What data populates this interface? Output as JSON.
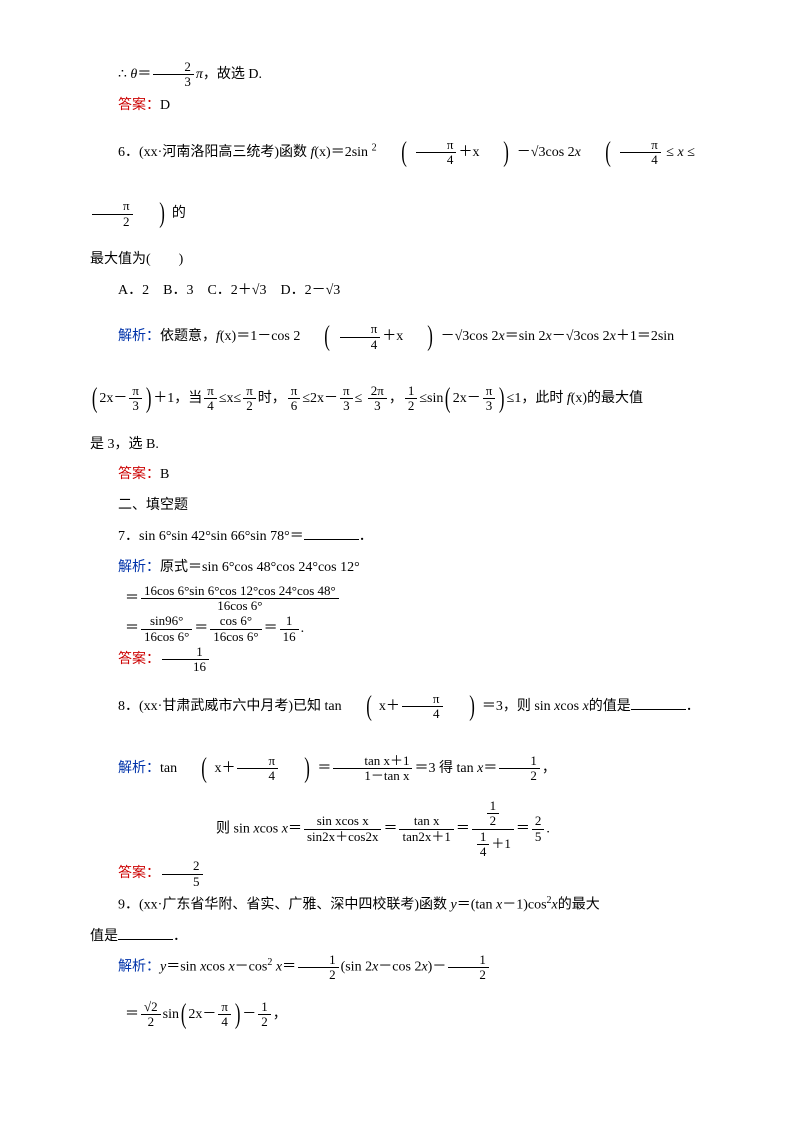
{
  "colors": {
    "red": "#cc0000",
    "blue": "#0033aa",
    "text": "#000000",
    "bg": "#ffffff"
  },
  "fontsize_body": 14,
  "line1_a": "∴ ",
  "line1_theta": "θ",
  "line1_b": "＝",
  "line1_frac_num": "2",
  "line1_frac_den": "3",
  "line1_c": "π",
  "line1_d": "，故选 D.",
  "ans5_label": "答案：",
  "ans5_val": "D",
  "q6_a": "6．(xx·河南洛阳高三统考)函数 ",
  "q6_fx": "f",
  "q6_paren_x": "(x)",
  "q6_b": "＝2sin ",
  "q6_sup2": "2",
  "q6_frac1_num": "π",
  "q6_frac1_den": "4",
  "q6_plus_x": "＋x",
  "q6_c": "－√3cos 2",
  "q6_x2": "x",
  "q6_frac2_num": "π",
  "q6_frac2_den": "4",
  "q6_le1": " ≤ ",
  "q6_xvar": "x",
  "q6_le2": " ≤ ",
  "q6_frac3_num": "π",
  "q6_frac3_den": "2",
  "q6_d": "的",
  "q6_line2": "最大值为(　　)",
  "q6_opts": "A．2　B．3　C．2＋√3　D．2－√3",
  "sol6_label": "解析：",
  "sol6_a": "依题意，",
  "sol6_b": "f",
  "sol6_c": "(x)",
  "sol6_d": "＝1－cos 2",
  "sol6_fr1_num": "π",
  "sol6_fr1_den": "4",
  "sol6_e": "＋x",
  "sol6_f": "－√3cos 2",
  "sol6_x": "x",
  "sol6_g": "＝sin 2",
  "sol6_h": "－√3cos 2",
  "sol6_i": "＋1＝2sin",
  "sol6_l2a": "2x－",
  "sol6_l2_fr_num": "π",
  "sol6_l2_fr_den": "3",
  "sol6_l2b": "＋1，当",
  "sol6_l2_fr2n": "π",
  "sol6_l2_fr2d": "4",
  "sol6_l2c": "≤x≤",
  "sol6_l2_fr3n": "π",
  "sol6_l2_fr3d": "2",
  "sol6_l2d": "时，",
  "sol6_l2_fr4n": "π",
  "sol6_l2_fr4d": "6",
  "sol6_l2e": "≤2x－",
  "sol6_l2_fr5n": "π",
  "sol6_l2_fr5d": "3",
  "sol6_l2f": "≤ ",
  "sol6_l2_fr6n": "2π",
  "sol6_l2_fr6d": "3",
  "sol6_l2g": "，",
  "sol6_l2_fr7n": "1",
  "sol6_l2_fr7d": "2",
  "sol6_l2h": "≤sin",
  "sol6_l2i": "2x－",
  "sol6_l2_fr8n": "π",
  "sol6_l2_fr8d": "3",
  "sol6_l2j": "≤1，此时 ",
  "sol6_l2k": "f",
  "sol6_l2l": "(x)",
  "sol6_l2m": "的最大值",
  "sol6_l3": "是 3，选 B.",
  "ans6_label": "答案：",
  "ans6_val": "B",
  "sec2": "二、填空题",
  "q7_a": "7．sin 6°sin 42°sin 66°sin 78°＝",
  "q7_b": "．",
  "sol7_label": "解析：",
  "sol7_a": "原式＝sin 6°cos 48°cos 24°cos 12°",
  "sol7_fr1n": "16cos 6°sin 6°cos 12°cos 24°cos 48°",
  "sol7_fr1d": "16cos 6°",
  "sol7_eq": "＝",
  "sol7_fr2n": "sin96°",
  "sol7_fr2d": "16cos 6°",
  "sol7_fr3n": "cos 6°",
  "sol7_fr3d": "16cos 6°",
  "sol7_fr4n": "1",
  "sol7_fr4d": "16",
  "sol7_dot": ".",
  "ans7_label": "答案：",
  "ans7_fr_n": "1",
  "ans7_fr_d": "16",
  "q8_a": "8．(xx·甘肃武威市六中月考)已知 tan",
  "q8_inside_x": "x＋",
  "q8_fr_n": "π",
  "q8_fr_d": "4",
  "q8_b": "＝3，则 sin ",
  "q8_xvar": "x",
  "q8_c": "cos ",
  "q8_d": "的值是",
  "q8_e": "．",
  "sol8_label": "解析：",
  "sol8_a": "tan",
  "sol8_in1": "x＋",
  "sol8_fr1n": "π",
  "sol8_fr1d": "4",
  "sol8_eq1": "＝",
  "sol8_fr2n": "tan x＋1",
  "sol8_fr2d": "1－tan x",
  "sol8_b": "＝3 得 tan ",
  "sol8_x": "x",
  "sol8_c": "＝",
  "sol8_fr3n": "1",
  "sol8_fr3d": "2",
  "sol8_comma": "，",
  "sol8_l2a": "则 sin ",
  "sol8_l2b": "cos ",
  "sol8_l2c": "＝",
  "sol8_l2_fr1n": "sin xcos x",
  "sol8_l2_fr1d": "sin2x＋cos2x",
  "sol8_l2_fr2n": "tan x",
  "sol8_l2_fr2d": "tan2x＋1",
  "sol8_l2_fr3topn": "1",
  "sol8_l2_fr3topd": "2",
  "sol8_l2_fr3botn": "1",
  "sol8_l2_fr3botd": "4",
  "sol8_l2_plus1": "＋1",
  "sol8_l2_fr4n": "2",
  "sol8_l2_fr4d": "5",
  "ans8_label": "答案：",
  "ans8_fr_n": "2",
  "ans8_fr_d": "5",
  "q9_a": "9．(xx·广东省华附、省实、广雅、深中四校联考)函数 ",
  "q9_y": "y",
  "q9_b": "＝(tan ",
  "q9_x": "x",
  "q9_c": "－1)cos",
  "q9_sup2": "2",
  "q9_d": "的最大",
  "q9_l2a": "值是",
  "q9_l2b": "．",
  "sol9_label": "解析：",
  "sol9_y": "y",
  "sol9_a": "＝sin ",
  "sol9_x": "x",
  "sol9_b": "cos ",
  "sol9_c": "－cos",
  "sol9_sup2": "2",
  "sol9_sp": " ",
  "sol9_d": "＝",
  "sol9_fr1n": "1",
  "sol9_fr1d": "2",
  "sol9_e": "(sin 2",
  "sol9_f": "－cos 2",
  "sol9_g": ")－",
  "sol9_fr2n": "1",
  "sol9_fr2d": "2",
  "sol9_l2eq": "＝",
  "sol9_l2_fr1n": "√2",
  "sol9_l2_fr1d": "2",
  "sol9_l2a": "sin",
  "sol9_l2_in": "2x－",
  "sol9_l2_fr2n": "π",
  "sol9_l2_fr2d": "4",
  "sol9_l2b": "－",
  "sol9_l2_fr3n": "1",
  "sol9_l2_fr3d": "2",
  "sol9_l2c": "，"
}
